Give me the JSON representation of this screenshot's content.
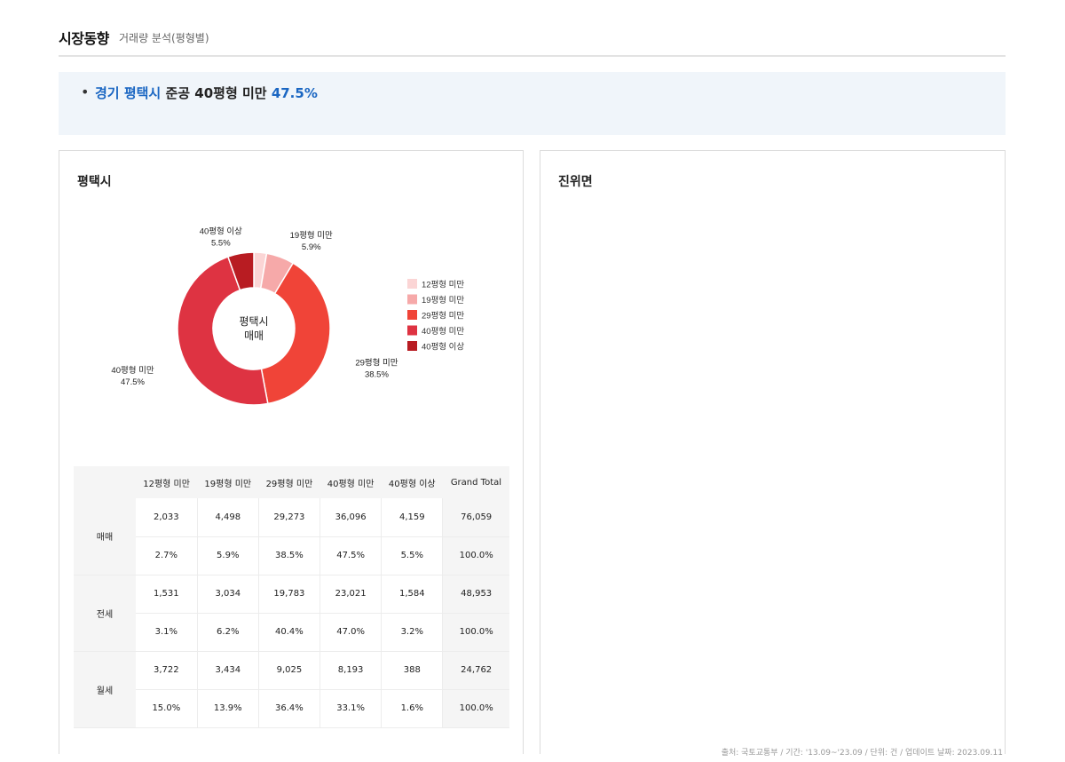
{
  "header": {
    "title": "시장동향",
    "subtitle": "거래량 분석(평형별)"
  },
  "summary": {
    "bullet": "•",
    "region": "경기 평택시",
    "text": " 준공 40평형 미만 ",
    "value": "47.5%"
  },
  "panels": {
    "left_title": "평택시",
    "right_title": "진위면"
  },
  "chart_data": {
    "type": "pie",
    "center_label_1": "평택시",
    "center_label_2": "매매",
    "categories": [
      "12평형 미만",
      "19평형 미만",
      "29평형 미만",
      "40평형 미만",
      "40평형 이상"
    ],
    "values": [
      2.7,
      5.9,
      38.5,
      47.5,
      5.5
    ],
    "colors": [
      "#fbd5d5",
      "#f6a9a9",
      "#f04438",
      "#de3342",
      "#b81c22"
    ],
    "slice_labels": [
      "",
      "19평형 미만\n5.9%",
      "29평형 미만\n38.5%",
      "40평형 미만\n47.5%",
      "40평형 이상\n5.5%"
    ],
    "legend_position": "right"
  },
  "table": {
    "headers": [
      "12평형 미만",
      "19평형 미만",
      "29평형 미만",
      "40평형 미만",
      "40평형 이상",
      "Grand Total"
    ],
    "groups": [
      {
        "label": "매매",
        "rows": [
          [
            "2,033",
            "4,498",
            "29,273",
            "36,096",
            "4,159",
            "76,059"
          ],
          [
            "2.7%",
            "5.9%",
            "38.5%",
            "47.5%",
            "5.5%",
            "100.0%"
          ]
        ]
      },
      {
        "label": "전세",
        "rows": [
          [
            "1,531",
            "3,034",
            "19,783",
            "23,021",
            "1,584",
            "48,953"
          ],
          [
            "3.1%",
            "6.2%",
            "40.4%",
            "47.0%",
            "3.2%",
            "100.0%"
          ]
        ]
      },
      {
        "label": "월세",
        "rows": [
          [
            "3,722",
            "3,434",
            "9,025",
            "8,193",
            "388",
            "24,762"
          ],
          [
            "15.0%",
            "13.9%",
            "36.4%",
            "33.1%",
            "1.6%",
            "100.0%"
          ]
        ]
      }
    ]
  },
  "footer": {
    "source": "출처: 국토교통부 / 기간: '13.09~'23.09 / 단위: 건 / 업데이트 날짜: 2023.09.11"
  }
}
